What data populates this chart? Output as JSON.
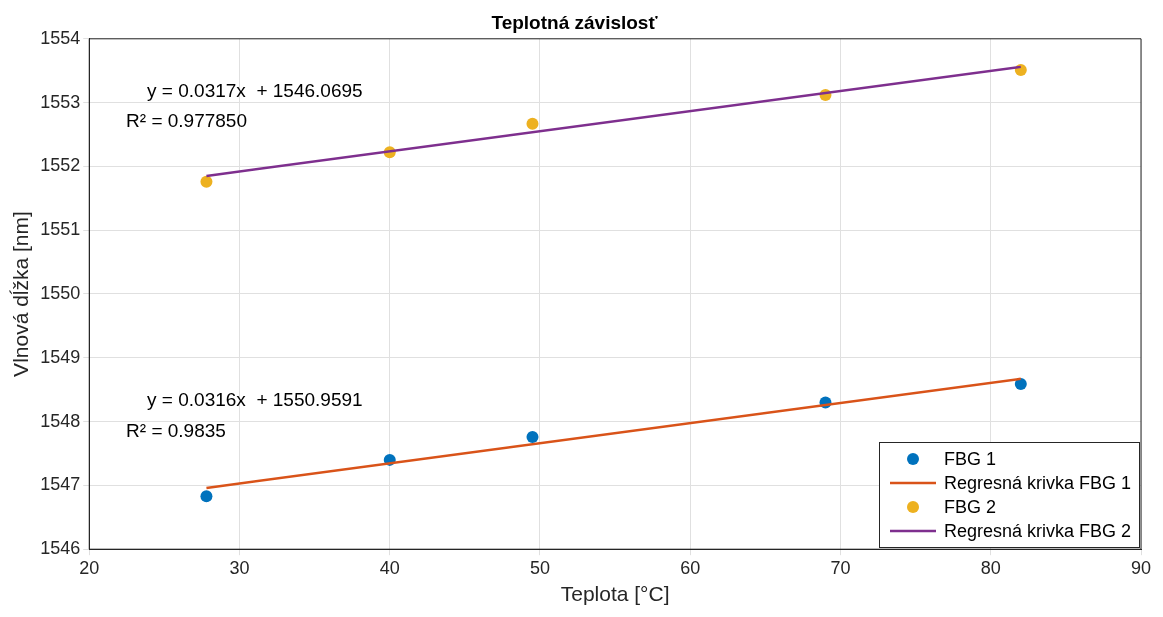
{
  "chart_data": {
    "type": "scatter",
    "title": "Teplotná závislosť",
    "xlabel": "Teplota [°C]",
    "ylabel": "Vlnová dĺžka [nm]",
    "xlim": [
      20,
      90
    ],
    "xticks": [
      20,
      30,
      40,
      50,
      60,
      70,
      80,
      90
    ],
    "ylim": [
      1546,
      1554
    ],
    "yticks": [
      1546,
      1547,
      1548,
      1549,
      1550,
      1551,
      1552,
      1553,
      1554
    ],
    "grid": true,
    "legend": "bottom right",
    "series": [
      {
        "name": "FBG 1",
        "marker": "circle",
        "color": "#0072bd",
        "x": [
          27.8,
          40,
          49.5,
          69,
          82
        ],
        "values": [
          1546.83,
          1547.4,
          1547.76,
          1548.3,
          1548.59
        ]
      },
      {
        "name": "Regresná krivka FBG 1",
        "type": "line",
        "marker": "none",
        "color": "#d95319",
        "x": [
          27.8,
          82
        ],
        "values": [
          1546.96,
          1548.67
        ]
      },
      {
        "name": "FBG 2",
        "marker": "circle",
        "color": "#edb120",
        "x": [
          27.8,
          40,
          49.5,
          69,
          82
        ],
        "values": [
          1551.76,
          1552.22,
          1552.67,
          1553.12,
          1553.51
        ]
      },
      {
        "name": "Regresná krivka FBG 2",
        "type": "line",
        "marker": "none",
        "color": "#7e2f8e",
        "x": [
          27.8,
          82
        ],
        "values": [
          1551.85,
          1553.56
        ]
      }
    ],
    "annotations": [
      "y = 0.0317x  + 1546.0695",
      "R² = 0.977850",
      "y = 0.0316x  + 1550.9591",
      "R² = 0.9835"
    ]
  }
}
